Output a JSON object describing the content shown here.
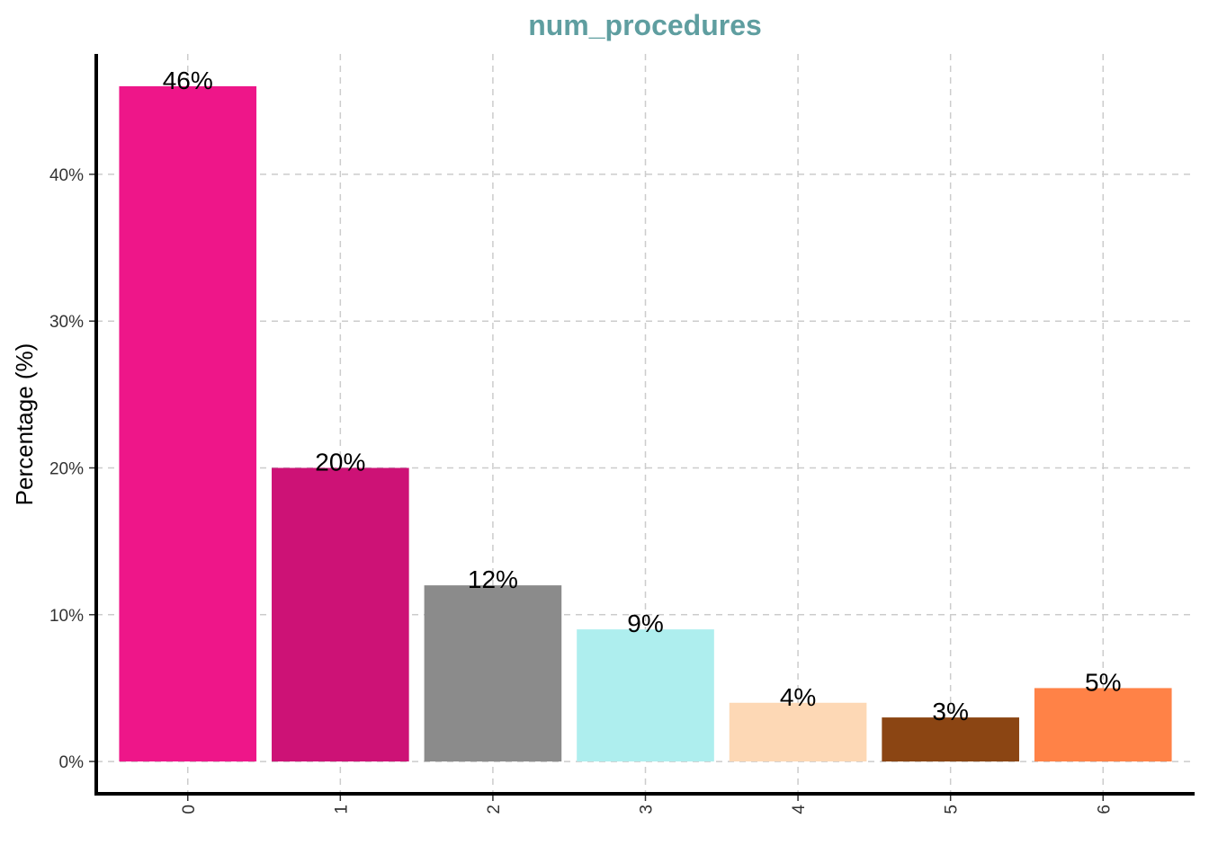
{
  "chart_data": {
    "type": "bar",
    "title": "num_procedures",
    "xlabel": "",
    "ylabel": "Percentage (%)",
    "categories": [
      "0",
      "1",
      "2",
      "3",
      "4",
      "5",
      "6"
    ],
    "values": [
      46,
      20,
      12,
      9,
      4,
      3,
      5
    ],
    "data_labels": [
      "46%",
      "20%",
      "12%",
      "9%",
      "4%",
      "3%",
      "5%"
    ],
    "bar_colors": [
      "#ee1689",
      "#cd1276",
      "#8b8b8b",
      "#aeeeee",
      "#fdd8b5",
      "#8b4513",
      "#ff8247"
    ],
    "ylim": [
      -2.2,
      48.2
    ],
    "yticks": [
      0,
      10,
      20,
      30,
      40
    ],
    "ytick_labels": [
      "0%",
      "10%",
      "20%",
      "30%",
      "40%"
    ],
    "grid": true,
    "legend": "none",
    "title_color": "#5f9ea0",
    "x_tick_rotation": "vertical"
  }
}
